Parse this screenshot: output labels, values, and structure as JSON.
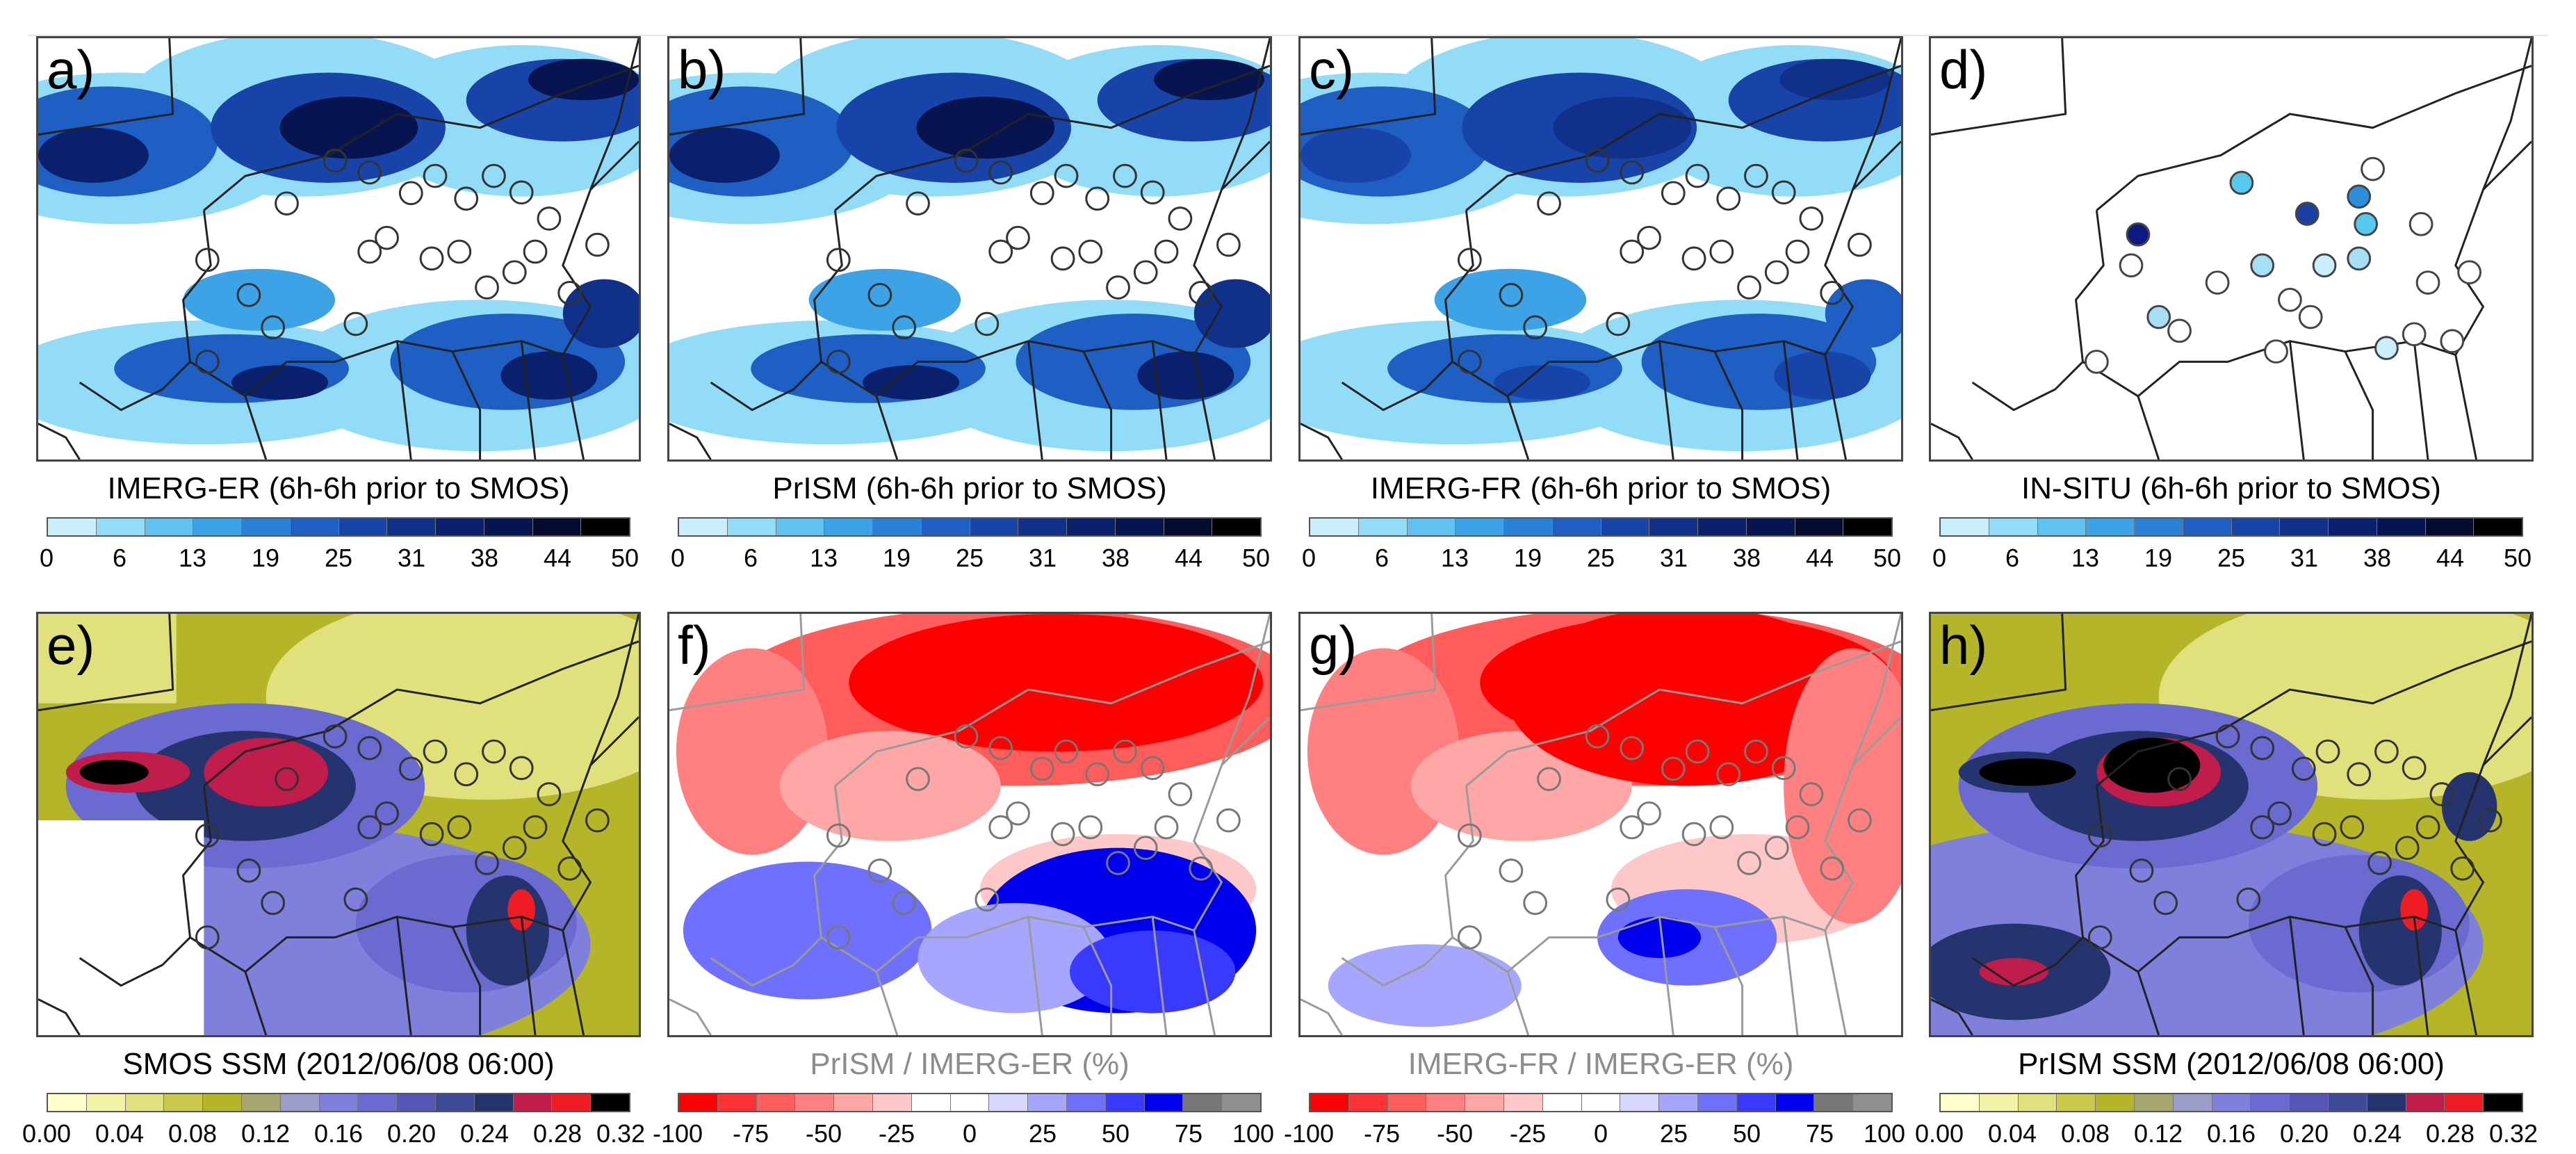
{
  "panels": [
    {
      "label": "a)",
      "caption": "IMERG-ER (6h-6h prior to SMOS)",
      "scale": "precip"
    },
    {
      "label": "b)",
      "caption": "PrISM (6h-6h prior to SMOS)",
      "scale": "precip"
    },
    {
      "label": "c)",
      "caption": "IMERG-FR (6h-6h prior to SMOS)",
      "scale": "precip"
    },
    {
      "label": "d)",
      "caption": "IN-SITU (6h-6h prior to SMOS)",
      "scale": "precip"
    },
    {
      "label": "e)",
      "caption": "SMOS SSM (2012/06/08 06:00)",
      "scale": "ssm"
    },
    {
      "label": "f)",
      "caption": "PrISM / IMERG-ER (%)",
      "scale": "ratio"
    },
    {
      "label": "g)",
      "caption": "IMERG-FR / IMERG-ER (%)",
      "scale": "ratio"
    },
    {
      "label": "h)",
      "caption": "PrISM SSM (2012/06/08 06:00)",
      "scale": "ssm"
    }
  ],
  "scales": {
    "precip": {
      "ticks": [
        "0",
        "6",
        "13",
        "19",
        "25",
        "31",
        "38",
        "44",
        "50"
      ],
      "colors": [
        "#c9eefc",
        "#93dcf7",
        "#5fc2f0",
        "#3ea3e6",
        "#2b80d8",
        "#1f5fc4",
        "#1843a8",
        "#10308a",
        "#0b206c",
        "#071450",
        "#040a30",
        "#000000"
      ]
    },
    "ssm": {
      "ticks": [
        "0.00",
        "0.04",
        "0.08",
        "0.12",
        "0.16",
        "0.20",
        "0.24",
        "0.28",
        "0.32"
      ],
      "colors": [
        "#ffffcc",
        "#f3f3a8",
        "#e0e07c",
        "#caca4a",
        "#b5b52a",
        "#a5a56e",
        "#9c9cc8",
        "#7f7fdc",
        "#6a6ad0",
        "#5656b8",
        "#3c4a98",
        "#25336e",
        "#c01c4c",
        "#ee1c24",
        "#000000"
      ]
    },
    "ratio": {
      "ticks": [
        "-100",
        "-75",
        "-50",
        "-25",
        "0",
        "25",
        "50",
        "75",
        "100"
      ],
      "colors": [
        "#ff0000",
        "#ff3333",
        "#ff5c5c",
        "#ff8080",
        "#ffa6a6",
        "#ffc8c8",
        "#ffffff",
        "#ffffff",
        "#d6d6ff",
        "#a6a6ff",
        "#7070ff",
        "#3a3aff",
        "#0000ee",
        "#777777",
        "#8f8f8f"
      ]
    }
  },
  "insitu_stations": [
    {
      "shade": "#0b1a80"
    },
    {
      "shade": "#57c9ef"
    },
    {
      "shade": "#1a40a4"
    },
    {
      "shade": "#2f8ed9"
    },
    {
      "shade": "#ffffff"
    },
    {
      "shade": "#a6def5"
    },
    {
      "shade": "#c9eefc"
    },
    {
      "shade": "#ffffff"
    },
    {
      "shade": "#57c9ef"
    },
    {
      "shade": "#ffffff"
    },
    {
      "shade": "#ffffff"
    },
    {
      "shade": "#a6def5"
    },
    {
      "shade": "#ffffff"
    },
    {
      "shade": "#ffffff"
    },
    {
      "shade": "#c9eefc"
    },
    {
      "shade": "#ffffff"
    },
    {
      "shade": "#a6def5"
    },
    {
      "shade": "#ffffff"
    },
    {
      "shade": "#ffffff"
    },
    {
      "shade": "#ffffff"
    },
    {
      "shade": "#ffffff"
    },
    {
      "shade": "#ffffff"
    },
    {
      "shade": "#ffffff"
    }
  ]
}
